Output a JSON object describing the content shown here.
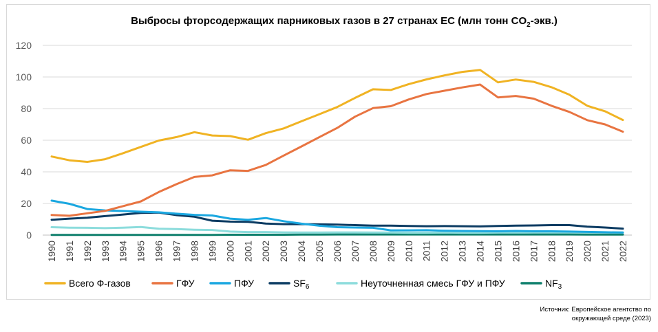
{
  "chart_data": {
    "type": "line",
    "title_main": "Выбросы фторсодержащих парниковых газов в 27 странах ЕС (млн тонн CO",
    "title_sub": "2",
    "title_tail": "-экв.)",
    "xlabel": "",
    "ylabel": "",
    "ylim": [
      0,
      120
    ],
    "yticks": [
      "0",
      "20",
      "40",
      "60",
      "80",
      "100",
      "120"
    ],
    "x": [
      "1990",
      "1991",
      "1992",
      "1993",
      "1994",
      "1995",
      "1996",
      "1997",
      "1998",
      "1999",
      "2000",
      "2001",
      "2002",
      "2003",
      "2004",
      "2005",
      "2006",
      "2007",
      "2008",
      "2009",
      "2010",
      "2011",
      "2012",
      "2013",
      "2014",
      "2015",
      "2016",
      "2017",
      "2018",
      "2019",
      "2020",
      "2021",
      "2022"
    ],
    "grid": "horizontal",
    "legend_position": "bottom",
    "series": [
      {
        "name": "Всего Ф-газов",
        "color": "#f0b323",
        "values": [
          49.7,
          47.3,
          46.3,
          48.0,
          51.8,
          55.8,
          59.8,
          62.0,
          65.1,
          63.0,
          62.6,
          60.3,
          64.5,
          67.5,
          72.0,
          76.5,
          81.0,
          86.8,
          92.2,
          91.8,
          95.5,
          98.5,
          101.0,
          103.2,
          104.5,
          96.6,
          98.4,
          96.9,
          93.5,
          88.8,
          81.8,
          78.3,
          72.8
        ]
      },
      {
        "name": "ГФУ",
        "color": "#e87441",
        "values": [
          12.7,
          12.2,
          13.8,
          15.3,
          18.3,
          21.3,
          27.2,
          32.2,
          36.8,
          37.8,
          41.0,
          40.6,
          44.4,
          50.3,
          56.1,
          62.0,
          67.8,
          74.9,
          80.3,
          81.5,
          85.8,
          89.2,
          91.3,
          93.4,
          95.2,
          87.1,
          88.0,
          86.3,
          81.8,
          77.9,
          72.7,
          70.0,
          65.4
        ]
      },
      {
        "name": "ПФУ",
        "color": "#1aa7e0",
        "values": [
          21.8,
          19.8,
          16.5,
          15.6,
          15.2,
          14.8,
          14.4,
          13.5,
          12.8,
          12.4,
          10.4,
          9.7,
          10.8,
          8.8,
          7.2,
          5.9,
          5.0,
          4.8,
          4.6,
          3.0,
          3.0,
          3.1,
          2.8,
          2.6,
          2.5,
          2.4,
          2.6,
          2.4,
          2.4,
          2.2,
          2.0,
          1.8,
          1.6
        ]
      },
      {
        "name": "SF6",
        "name_main": "SF",
        "name_sub": "6",
        "color": "#0b3b62",
        "values": [
          9.7,
          10.4,
          11.0,
          12.0,
          13.0,
          14.0,
          14.2,
          12.6,
          11.6,
          9.1,
          8.5,
          8.4,
          7.3,
          6.9,
          6.9,
          6.8,
          6.6,
          6.3,
          6.0,
          6.0,
          5.8,
          5.6,
          5.7,
          5.6,
          5.5,
          5.8,
          6.0,
          6.1,
          6.3,
          6.3,
          5.3,
          4.8,
          4.1
        ]
      },
      {
        "name": "Неуточненная смесь ГФУ и ПФУ",
        "color": "#8cdcdc",
        "values": [
          5.0,
          4.7,
          4.6,
          4.4,
          4.7,
          5.1,
          4.0,
          3.8,
          3.4,
          3.2,
          2.2,
          1.9,
          1.9,
          1.7,
          1.6,
          1.6,
          1.7,
          1.7,
          1.6,
          1.6,
          1.5,
          1.5,
          1.6,
          1.5,
          1.5,
          1.6,
          1.6,
          1.7,
          1.7,
          1.7,
          1.6,
          1.6,
          1.6
        ]
      },
      {
        "name": "NF3",
        "name_main": "NF",
        "name_sub": "3",
        "color": "#0e7f6c",
        "values": [
          0.1,
          0.1,
          0.1,
          0.1,
          0.1,
          0.1,
          0.1,
          0.1,
          0.1,
          0.1,
          0.2,
          0.2,
          0.2,
          0.2,
          0.3,
          0.3,
          0.4,
          0.4,
          0.4,
          0.4,
          0.4,
          0.4,
          0.4,
          0.4,
          0.4,
          0.4,
          0.4,
          0.4,
          0.4,
          0.4,
          0.3,
          0.3,
          0.3
        ]
      }
    ]
  },
  "source": {
    "line1": "Источник: Европейское агентство по",
    "line2": "окружающей среде (2023)"
  }
}
